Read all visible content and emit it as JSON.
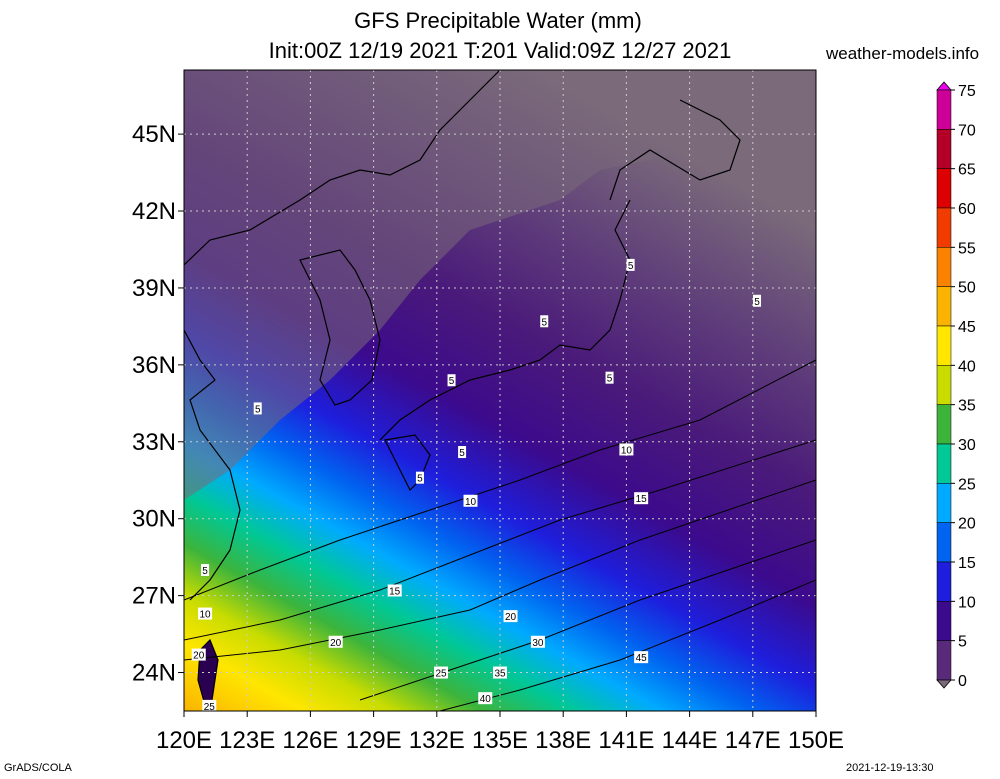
{
  "title": {
    "line1": "GFS Precipitable Water (mm)",
    "line2": "Init:00Z 12/19 2021 T:201 Valid:09Z 12/27 2021"
  },
  "source_site": "weather-models.info",
  "footer": {
    "left": "GrADS/COLA",
    "right": "2021-12-19-13:30"
  },
  "map": {
    "lon_range": [
      120,
      150
    ],
    "lat_range": [
      22.5,
      47.5
    ],
    "lon_labels": [
      "120E",
      "123E",
      "126E",
      "129E",
      "132E",
      "135E",
      "138E",
      "141E",
      "144E",
      "147E",
      "150E"
    ],
    "lat_labels": [
      "24N",
      "27N",
      "30N",
      "33N",
      "36N",
      "39N",
      "42N",
      "45N"
    ],
    "contour_labels": [
      {
        "text": "5",
        "lon": 141.2,
        "lat": 39.9
      },
      {
        "text": "5",
        "lon": 147.2,
        "lat": 38.5
      },
      {
        "text": "5",
        "lon": 137.1,
        "lat": 37.7
      },
      {
        "text": "5",
        "lon": 132.7,
        "lat": 35.4
      },
      {
        "text": "5",
        "lon": 140.2,
        "lat": 35.5
      },
      {
        "text": "5",
        "lon": 123.5,
        "lat": 34.3
      },
      {
        "text": "5",
        "lon": 133.2,
        "lat": 32.6
      },
      {
        "text": "5",
        "lon": 131.2,
        "lat": 31.6
      },
      {
        "text": "5",
        "lon": 121.0,
        "lat": 28.0
      },
      {
        "text": "10",
        "lon": 141.0,
        "lat": 32.7
      },
      {
        "text": "10",
        "lon": 133.6,
        "lat": 30.7
      },
      {
        "text": "10",
        "lon": 121.0,
        "lat": 26.3
      },
      {
        "text": "15",
        "lon": 141.7,
        "lat": 30.8
      },
      {
        "text": "15",
        "lon": 130.0,
        "lat": 27.2
      },
      {
        "text": "20",
        "lon": 135.5,
        "lat": 26.2
      },
      {
        "text": "20",
        "lon": 127.2,
        "lat": 25.2
      },
      {
        "text": "20",
        "lon": 120.7,
        "lat": 24.7
      },
      {
        "text": "25",
        "lon": 132.2,
        "lat": 24.0
      },
      {
        "text": "25",
        "lon": 121.2,
        "lat": 22.7
      },
      {
        "text": "30",
        "lon": 136.8,
        "lat": 25.2
      },
      {
        "text": "35",
        "lon": 135.0,
        "lat": 24.0
      },
      {
        "text": "40",
        "lon": 134.3,
        "lat": 23.0
      },
      {
        "text": "45",
        "lon": 141.7,
        "lat": 24.6
      }
    ]
  },
  "colorbar": {
    "labels": [
      "75",
      "70",
      "65",
      "60",
      "55",
      "50",
      "45",
      "40",
      "35",
      "30",
      "25",
      "20",
      "15",
      "10",
      "5",
      "0"
    ],
    "colors": [
      "#ee00ee",
      "#cc0099",
      "#b40028",
      "#dc0000",
      "#f03c00",
      "#fa8200",
      "#fab400",
      "#ffe600",
      "#c8dc00",
      "#3cb43c",
      "#00c896",
      "#00aaff",
      "#0064f0",
      "#1e1edc",
      "#3c0a8c",
      "#5a2a7a",
      "#7a6a7a"
    ]
  }
}
